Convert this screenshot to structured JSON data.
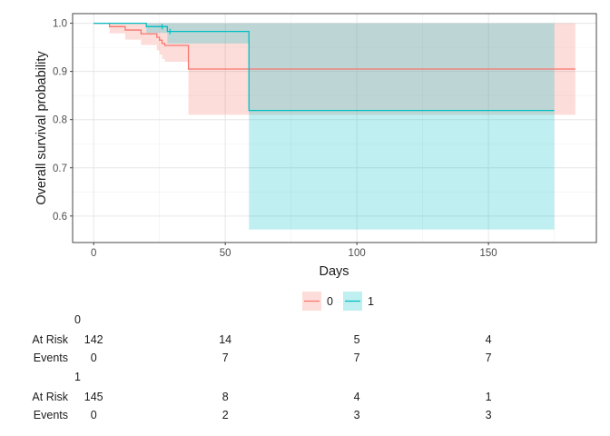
{
  "chart_data": {
    "type": "line",
    "subtype": "kaplan-meier survival curve",
    "title": "",
    "xlabel": "Days",
    "ylabel": "Overall survival probability",
    "xlim": [
      -8,
      191
    ],
    "ylim": [
      0.545,
      1.02
    ],
    "x_ticks": [
      0,
      50,
      100,
      150
    ],
    "y_ticks": [
      0.6,
      0.7,
      0.8,
      0.9,
      1.0
    ],
    "y_tick_labels": [
      "0.6",
      "0.7",
      "0.8",
      "0.9",
      "1.0"
    ],
    "grid": true,
    "legend_position": "bottom",
    "series": [
      {
        "name": "0",
        "color": "#F8766D",
        "band_color": "#FFDADA",
        "steps": [
          {
            "x": 0,
            "y": 1.0,
            "lower": 1.0,
            "upper": 1.0
          },
          {
            "x": 6,
            "y": 0.993,
            "lower": 0.979,
            "upper": 1.0
          },
          {
            "x": 12,
            "y": 0.986,
            "lower": 0.966,
            "upper": 1.0
          },
          {
            "x": 18,
            "y": 0.978,
            "lower": 0.955,
            "upper": 1.0
          },
          {
            "x": 24,
            "y": 0.971,
            "lower": 0.944,
            "upper": 1.0
          },
          {
            "x": 25,
            "y": 0.965,
            "lower": 0.935,
            "upper": 1.0
          },
          {
            "x": 26,
            "y": 0.958,
            "lower": 0.926,
            "upper": 1.0
          },
          {
            "x": 27,
            "y": 0.954,
            "lower": 0.92,
            "upper": 1.0
          },
          {
            "x": 36,
            "y": 0.905,
            "lower": 0.81,
            "upper": 1.0
          },
          {
            "x": 183,
            "y": 0.905,
            "lower": 0.81,
            "upper": 1.0
          }
        ]
      },
      {
        "name": "1",
        "color": "#00BFC4",
        "band_color": "#CFEEF0",
        "steps": [
          {
            "x": 0,
            "y": 1.0,
            "lower": 1.0,
            "upper": 1.0
          },
          {
            "x": 20,
            "y": 0.993,
            "lower": 0.98,
            "upper": 1.0
          },
          {
            "x": 28,
            "y": 0.983,
            "lower": 0.958,
            "upper": 1.0
          },
          {
            "x": 59,
            "y": 0.819,
            "lower": 0.572,
            "upper": 1.0
          },
          {
            "x": 175,
            "y": 0.819,
            "lower": 0.572,
            "upper": 1.0
          }
        ]
      }
    ],
    "censor_ticks": [
      {
        "series": "1",
        "x": 26
      },
      {
        "series": "1",
        "x": 29
      }
    ]
  },
  "risk_table": {
    "groups": [
      {
        "name": "0",
        "at_risk": [
          "142",
          "14",
          "5",
          "4"
        ],
        "events": [
          "0",
          "7",
          "7",
          "7"
        ]
      },
      {
        "name": "1",
        "at_risk": [
          "145",
          "8",
          "4",
          "1"
        ],
        "events": [
          "0",
          "2",
          "3",
          "3"
        ]
      }
    ],
    "row_labels": {
      "at_risk": "At Risk",
      "events": "Events"
    }
  }
}
